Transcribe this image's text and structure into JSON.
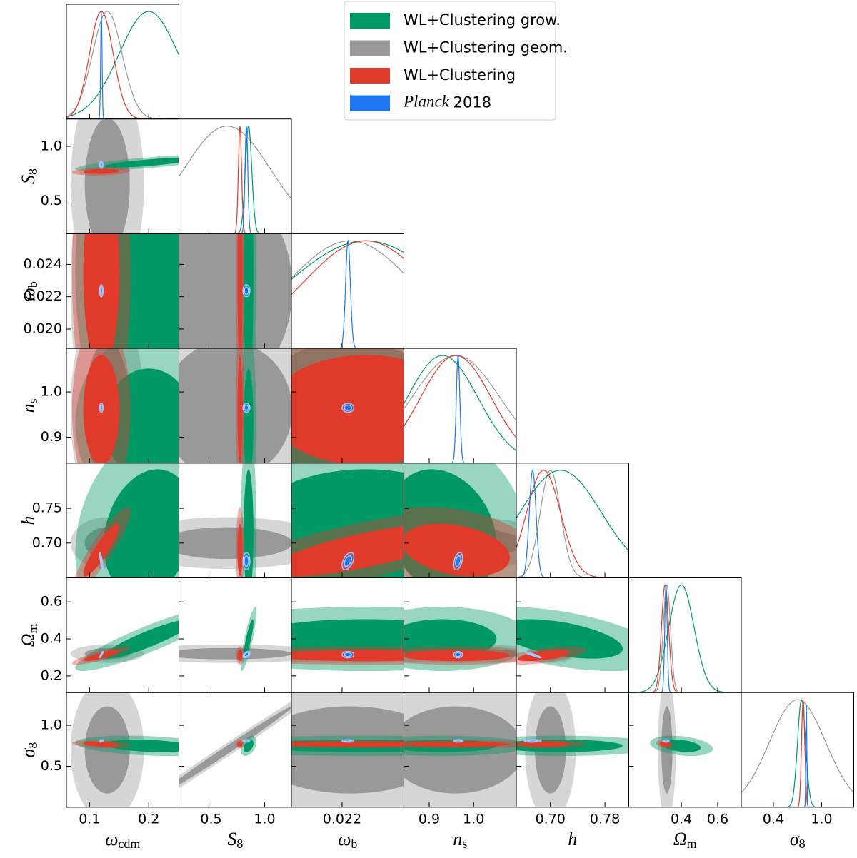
{
  "chart_data": {
    "type": "corner",
    "legend": "upper right",
    "parameters": [
      {
        "symbol": "ω",
        "subscript": "cdm",
        "lim": [
          0.061,
          0.251
        ],
        "xticks": [
          0.1,
          0.2
        ]
      },
      {
        "symbol": "S",
        "subscript": "8",
        "lim": [
          0.2,
          1.25
        ],
        "xticks": [
          0.5,
          {
            "value": 1.0,
            "label": "1.0"
          }
        ],
        "yticks": [
          0.5,
          {
            "value": 1.0,
            "label": "1.0"
          }
        ]
      },
      {
        "symbol": "ω",
        "subscript": "b",
        "lim": [
          0.0188,
          0.0259
        ],
        "xticks": [
          0.022
        ],
        "yticks": [
          {
            "value": 0.02,
            "label": "0.020"
          },
          0.022,
          0.024
        ]
      },
      {
        "symbol": "n",
        "subscript": "s",
        "lim": [
          0.843,
          1.096
        ],
        "xticks": [
          0.9,
          {
            "value": 1.0,
            "label": "1.0"
          }
        ],
        "yticks": [
          0.9,
          {
            "value": 1.0,
            "label": "1.0"
          }
        ]
      },
      {
        "symbol": "h",
        "lim": [
          0.65,
          0.815
        ],
        "xticks": [
          {
            "value": 0.7,
            "label": "0.70"
          },
          0.78
        ],
        "yticks": [
          {
            "value": 0.7,
            "label": "0.70"
          },
          0.75
        ]
      },
      {
        "symbol": "Ω",
        "subscript": "m",
        "lim": [
          0.11,
          0.73
        ],
        "xticks": [
          0.4,
          0.6
        ],
        "yticks": [
          0.2,
          0.4,
          0.6
        ]
      },
      {
        "symbol": "σ",
        "subscript": "8",
        "lim": [
          0.0,
          1.4
        ],
        "xticks": [
          0.4,
          {
            "value": 1.0,
            "label": "1.0"
          }
        ],
        "yticks": [
          0.5,
          {
            "value": 1.0,
            "label": "1.0"
          }
        ]
      }
    ],
    "series": [
      {
        "name": "WL+Clustering grow.",
        "color": "#009966",
        "mean": [
          0.2,
          0.85,
          0.0235,
          0.93,
          0.715,
          0.4,
          0.75
        ],
        "sigma": [
          0.05,
          0.03,
          0.005,
          0.08,
          0.06,
          0.07,
          0.05
        ],
        "corr": [
          [
            0,
            1,
            0.75
          ],
          [
            0,
            5,
            0.9
          ],
          [
            1,
            5,
            0.85
          ],
          [
            4,
            5,
            -0.5
          ],
          [
            0,
            6,
            -0.3
          ],
          [
            3,
            4,
            -0.2
          ],
          [
            5,
            6,
            -0.3
          ],
          [
            1,
            6,
            0.4
          ],
          [
            0,
            4,
            0.2
          ]
        ]
      },
      {
        "name": "WL+Clustering geom.",
        "color": "#999999",
        "mean": [
          0.13,
          0.65,
          0.0225,
          0.96,
          0.7,
          0.32,
          0.7
        ],
        "sigma": [
          0.025,
          0.4,
          0.004,
          0.1,
          0.015,
          0.02,
          0.35
        ],
        "corr": [
          [
            1,
            6,
            0.995
          ]
        ]
      },
      {
        "name": "WL+Clustering",
        "color": "#e03a2a",
        "mean": [
          0.12,
          0.77,
          0.0235,
          0.96,
          0.69,
          0.31,
          0.77
        ],
        "sigma": [
          0.02,
          0.015,
          0.004,
          0.08,
          0.025,
          0.02,
          0.02
        ],
        "corr": [
          [
            0,
            4,
            0.9
          ],
          [
            0,
            5,
            0.85
          ],
          [
            2,
            4,
            0.75
          ],
          [
            4,
            5,
            0.6
          ],
          [
            3,
            4,
            -0.3
          ],
          [
            0,
            6,
            -0.3
          ],
          [
            5,
            6,
            -0.3
          ],
          [
            0,
            1,
            0.2
          ]
        ]
      },
      {
        "name": "Planck 2018",
        "color": "#1f77f0",
        "mean": [
          0.12,
          0.83,
          0.02237,
          0.965,
          0.674,
          0.315,
          0.81
        ],
        "sigma": [
          0.0012,
          0.013,
          0.00015,
          0.004,
          0.005,
          0.007,
          0.006
        ],
        "corr": [
          [
            0,
            4,
            -0.85
          ],
          [
            0,
            5,
            0.9
          ],
          [
            4,
            5,
            -0.95
          ],
          [
            2,
            4,
            0.5
          ],
          [
            3,
            4,
            0.4
          ],
          [
            0,
            6,
            0.3
          ],
          [
            1,
            5,
            0.5
          ]
        ]
      }
    ]
  }
}
